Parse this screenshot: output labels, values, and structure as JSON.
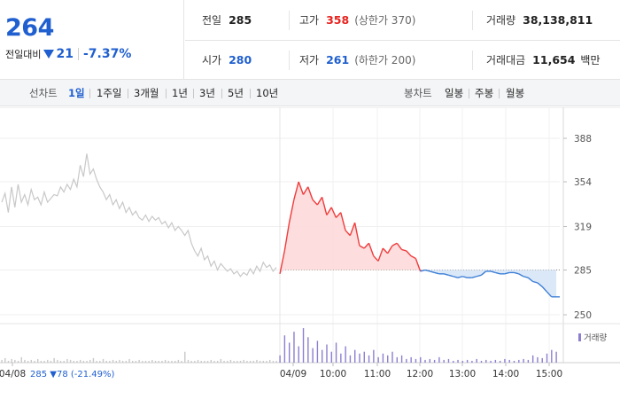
{
  "quote": {
    "price": "264",
    "change_label": "전일대비",
    "change_amount": "21",
    "change_rate": "-7.37%",
    "prev_close": {
      "label": "전일",
      "value": "285"
    },
    "open": {
      "label": "시가",
      "value": "280"
    },
    "high": {
      "label": "고가",
      "value": "358",
      "limit": "(상한가 370)"
    },
    "low": {
      "label": "저가",
      "value": "261",
      "limit": "(하한가 200)"
    },
    "volume": {
      "label": "거래량",
      "value": "38,138,811"
    },
    "amount": {
      "label": "거래대금",
      "value": "11,654",
      "unit": "백만"
    }
  },
  "tabs": {
    "line_label": "선차트",
    "line_periods": [
      "1일",
      "1주일",
      "3개월",
      "1년",
      "3년",
      "5년",
      "10년"
    ],
    "active": "1일",
    "candle_label": "봉차트",
    "candle_periods": [
      "일봉",
      "주봉",
      "월봉"
    ]
  },
  "chart_data": {
    "type": "line",
    "y_ticks": [
      "388",
      "354",
      "319",
      "285",
      "250"
    ],
    "ylim": [
      250,
      388
    ],
    "baseline": 285,
    "x_labels": [
      "04/08",
      "04/09",
      "10:00",
      "11:00",
      "12:00",
      "13:00",
      "14:00",
      "15:00"
    ],
    "prev_day_summary": {
      "date": "04/08",
      "close": "285",
      "change": "78",
      "rate": "(-21.49%)"
    },
    "volume_legend": "거래량",
    "colors": {
      "prev_day": "#c8c8c8",
      "up": "#f03c3c",
      "down": "#3d7fd6",
      "volume": "#8c7fd0",
      "volume_prev": "#c8c8c8"
    },
    "series": [
      {
        "day": "04/08",
        "values": [
          338,
          345,
          330,
          350,
          334,
          352,
          338,
          344,
          336,
          348,
          340,
          342,
          336,
          346,
          338,
          341,
          344,
          343,
          350,
          346,
          352,
          348,
          356,
          350,
          367,
          358,
          376,
          360,
          364,
          356,
          350,
          346,
          340,
          344,
          336,
          340,
          333,
          338,
          330,
          334,
          328,
          331,
          326,
          324,
          328,
          323,
          327,
          324,
          326,
          321,
          323,
          318,
          322,
          316,
          319,
          316,
          312,
          316,
          306,
          300,
          296,
          302,
          293,
          296,
          288,
          292,
          285,
          290,
          287,
          284,
          286,
          282,
          284,
          280,
          283,
          281,
          286,
          282,
          288,
          284,
          291,
          287,
          289,
          284,
          287
        ]
      },
      {
        "day": "04/09",
        "values": [
          282,
          300,
          322,
          340,
          354,
          344,
          350,
          340,
          336,
          342,
          328,
          334,
          326,
          330,
          316,
          312,
          322,
          304,
          302,
          306,
          296,
          292,
          302,
          298,
          304,
          306,
          301,
          300,
          296,
          294,
          284,
          285,
          284,
          283,
          282,
          282,
          281,
          280,
          279,
          280,
          279,
          279,
          280,
          281,
          284,
          284,
          283,
          282,
          282,
          283,
          283,
          282,
          280,
          279,
          276,
          275,
          272,
          268,
          264,
          264
        ]
      }
    ],
    "volume": {
      "prev_day": [
        3,
        5,
        2,
        4,
        3,
        2,
        6,
        3,
        2,
        3,
        2,
        4,
        2,
        2,
        3,
        2,
        5,
        3,
        2,
        2,
        4,
        3,
        2,
        2,
        3,
        2,
        2,
        3,
        5,
        2,
        2,
        4,
        2,
        2,
        3,
        2,
        3,
        2,
        2,
        4,
        2,
        2,
        3,
        2,
        2,
        2,
        3,
        2,
        2,
        2,
        3,
        2,
        2,
        2,
        3,
        2,
        12,
        3,
        2,
        2,
        3,
        2,
        2,
        2,
        3,
        2,
        2,
        4,
        2,
        2,
        3,
        2,
        2,
        2,
        3,
        2,
        2,
        2,
        3,
        2,
        2,
        2,
        3,
        2,
        2
      ],
      "day": [
        8,
        30,
        22,
        34,
        18,
        38,
        28,
        16,
        24,
        14,
        20,
        12,
        22,
        10,
        18,
        8,
        14,
        10,
        12,
        8,
        14,
        6,
        10,
        8,
        12,
        6,
        8,
        4,
        6,
        4,
        6,
        3,
        4,
        3,
        6,
        3,
        4,
        2,
        3,
        2,
        3,
        2,
        4,
        2,
        3,
        2,
        3,
        2,
        4,
        3,
        2,
        3,
        4,
        3,
        8,
        6,
        5,
        10,
        14,
        12
      ]
    }
  }
}
